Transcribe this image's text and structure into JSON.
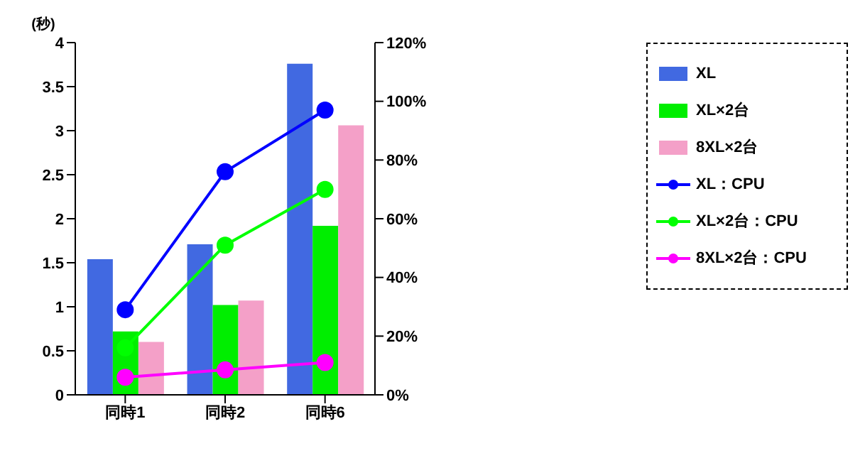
{
  "chart_data": {
    "type": "bar",
    "ylabel": "(秒)",
    "categories": [
      "同時1",
      "同時2",
      "同時6"
    ],
    "series": [
      {
        "name": "XL",
        "color": "#4169e1",
        "values": [
          1.54,
          1.71,
          3.76
        ]
      },
      {
        "name": "XL×2台",
        "color": "#00ee00",
        "values": [
          0.72,
          1.02,
          1.92
        ]
      },
      {
        "name": "8XL×2台",
        "color": "#f4a0c8",
        "values": [
          0.6,
          1.07,
          3.06
        ]
      },
      {
        "name": "XL：CPU",
        "type": "line",
        "axis": "y2",
        "color": "#0000ff",
        "values": [
          29,
          76,
          97
        ]
      },
      {
        "name": "XL×2台：CPU",
        "type": "line",
        "axis": "y2",
        "color": "#00ff00",
        "values": [
          16,
          51,
          70
        ]
      },
      {
        "name": "8XL×2台：CPU",
        "type": "line",
        "axis": "y2",
        "color": "#ff00ff",
        "values": [
          6,
          8.5,
          11
        ]
      }
    ],
    "ylim": [
      0,
      4
    ],
    "yticks": [
      0,
      0.5,
      1,
      1.5,
      2,
      2.5,
      3,
      3.5,
      4
    ],
    "y2lim": [
      0,
      120
    ],
    "y2ticks": [
      {
        "value": 0,
        "label": "0%"
      },
      {
        "value": 20,
        "label": "20%"
      },
      {
        "value": 40,
        "label": "40%"
      },
      {
        "value": 60,
        "label": "60%"
      },
      {
        "value": 80,
        "label": "80%"
      },
      {
        "value": 100,
        "label": "100%"
      },
      {
        "value": 120,
        "label": "120%"
      }
    ],
    "grid": false,
    "legend": "right",
    "marker": "circle"
  }
}
